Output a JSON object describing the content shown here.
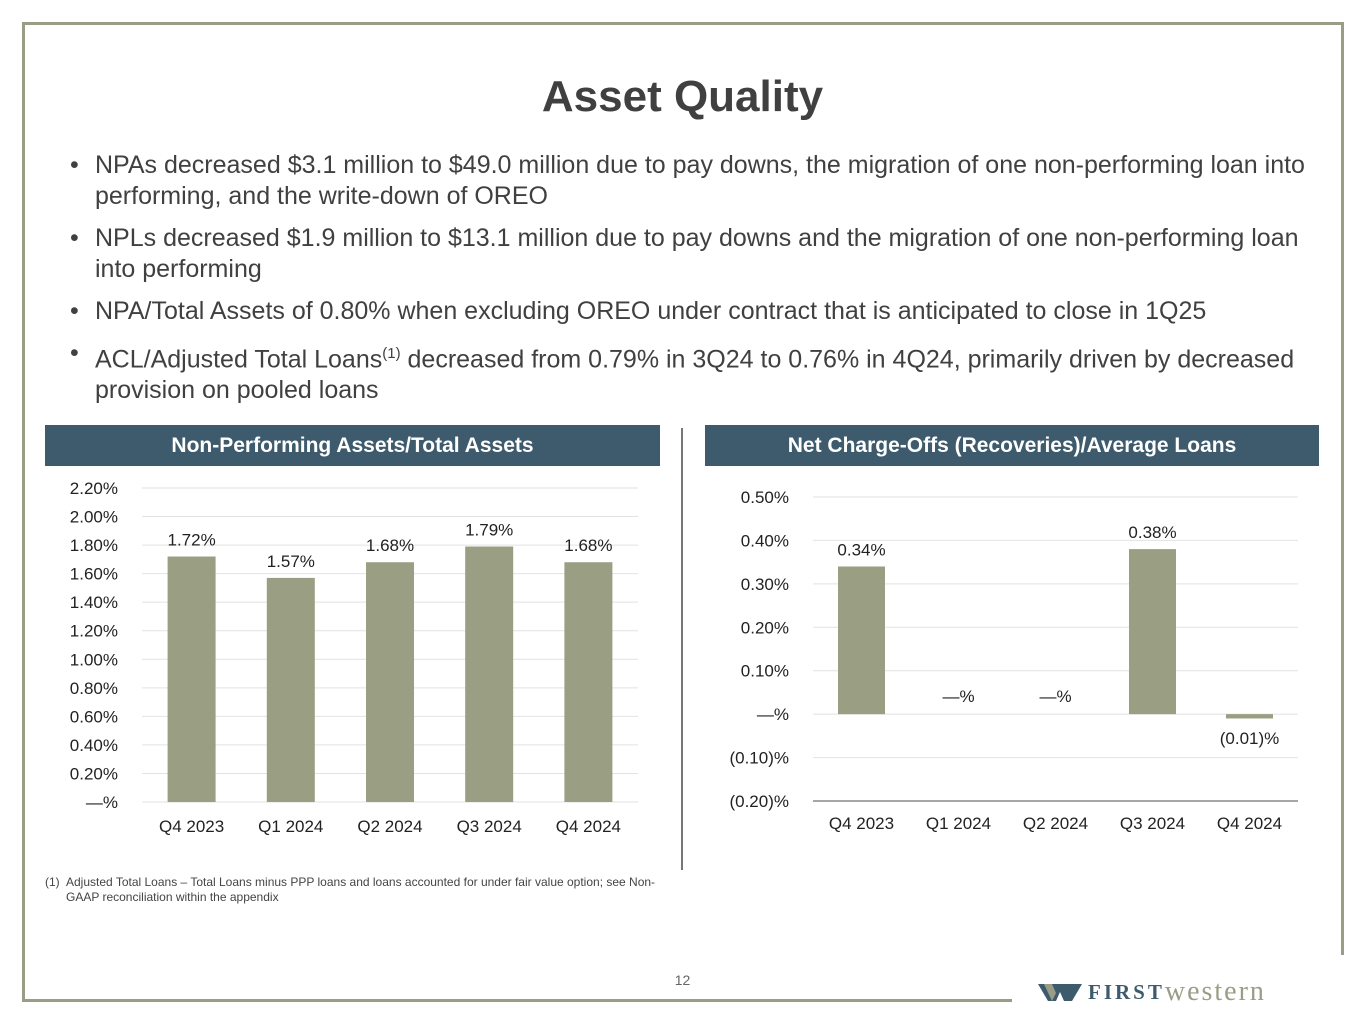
{
  "title": "Asset Quality",
  "bullets": [
    {
      "text": "NPAs decreased $3.1 million to $49.0 million due to pay downs, the migration of one non-performing loan into performing, and the write-down of OREO"
    },
    {
      "text": "NPLs decreased $1.9 million to $13.1 million due to pay downs and the migration of one non-performing loan into performing"
    },
    {
      "text": "NPA/Total Assets of 0.80% when excluding OREO under contract that is anticipated to close in 1Q25"
    },
    {
      "text_before": "ACL/Adjusted Total Loans",
      "sup": "(1)",
      "text_after": " decreased from 0.79% in 3Q24 to 0.76% in 4Q24, primarily driven by decreased provision on pooled loans"
    }
  ],
  "footnote": {
    "marker": "(1)",
    "text": "Adjusted Total Loans –  Total Loans minus PPP loans and loans accounted for under fair value option; see Non-GAAP reconciliation within the appendix"
  },
  "page_number": "12",
  "logo": {
    "first": "FIRST",
    "western": "western"
  },
  "colors": {
    "bar": "#9a9f84",
    "header": "#3d5b6d",
    "border": "#9a9d86"
  },
  "chart_data": [
    {
      "type": "bar",
      "title": "Non-Performing Assets/Total Assets",
      "categories": [
        "Q4 2023",
        "Q1 2024",
        "Q2 2024",
        "Q3 2024",
        "Q4 2024"
      ],
      "values": [
        1.72,
        1.57,
        1.68,
        1.79,
        1.68
      ],
      "data_labels": [
        "1.72%",
        "1.57%",
        "1.68%",
        "1.79%",
        "1.68%"
      ],
      "ylim": [
        0,
        2.2
      ],
      "yticks": [
        0,
        0.2,
        0.4,
        0.6,
        0.8,
        1.0,
        1.2,
        1.4,
        1.6,
        1.8,
        2.0,
        2.2
      ],
      "ytick_labels": [
        "—%",
        "0.20%",
        "0.40%",
        "0.60%",
        "0.80%",
        "1.00%",
        "1.20%",
        "1.40%",
        "1.60%",
        "1.80%",
        "2.00%",
        "2.20%"
      ],
      "grid": true
    },
    {
      "type": "bar",
      "title": "Net Charge-Offs (Recoveries)/Average Loans",
      "categories": [
        "Q4 2023",
        "Q1 2024",
        "Q2 2024",
        "Q3 2024",
        "Q4 2024"
      ],
      "values": [
        0.34,
        0,
        0,
        0.38,
        -0.01
      ],
      "data_labels": [
        "0.34%",
        "—%",
        "—%",
        "0.38%",
        "(0.01)%"
      ],
      "ylim": [
        -0.2,
        0.5
      ],
      "yticks": [
        -0.2,
        -0.1,
        0,
        0.1,
        0.2,
        0.3,
        0.4,
        0.5
      ],
      "ytick_labels": [
        "(0.20)%",
        "(0.10)%",
        "—%",
        "0.10%",
        "0.20%",
        "0.30%",
        "0.40%",
        "0.50%"
      ],
      "grid": true
    }
  ]
}
